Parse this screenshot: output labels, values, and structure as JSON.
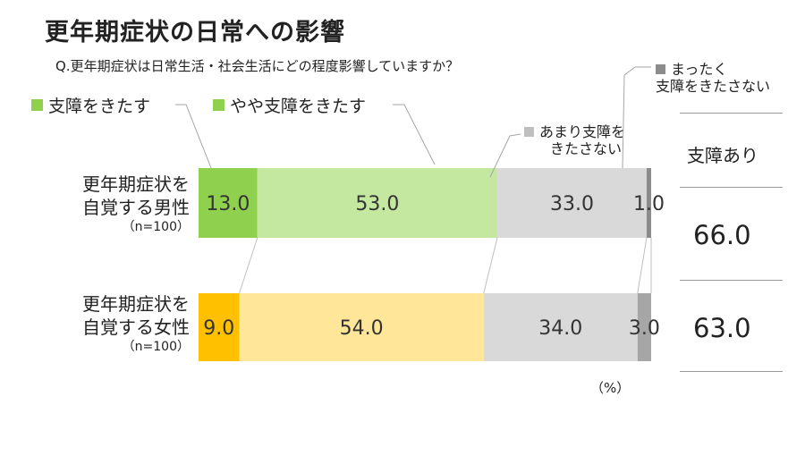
{
  "title": "更年期症状の日常への影響",
  "question": "Q.更年期症状は日常生活・社会生活にどの程度影響していますか？",
  "unit_label": "（%）",
  "summary": {
    "header": "支障あり",
    "values": [
      "66.0",
      "63.0"
    ]
  },
  "legend": {
    "s1": "支障をきたす",
    "s2": "やや支障をきたす",
    "s3_line1": "あまり支障を",
    "s3_line2": "きたさない",
    "s4_line1": "まったく",
    "s4_line2": "支障をきたさない"
  },
  "rows": [
    {
      "line1": "更年期症状を",
      "line2": "自覚する男性",
      "n": "（n=100）"
    },
    {
      "line1": "更年期症状を",
      "line2": "自覚する女性",
      "n": "（n=100）"
    }
  ],
  "colors": {
    "men": [
      "#8fd14f",
      "#c5e8a0",
      "#d9d9d9",
      "#8c8c8c"
    ],
    "women": [
      "#ffc000",
      "#ffe699",
      "#d9d9d9",
      "#a6a6a6"
    ]
  },
  "chart_data": {
    "type": "bar",
    "orientation": "horizontal",
    "stacked": true,
    "categories": [
      "更年期症状を自覚する男性",
      "更年期症状を自覚する女性"
    ],
    "series": [
      {
        "name": "支障をきたす",
        "values": [
          13.0,
          9.0
        ]
      },
      {
        "name": "やや支障をきたす",
        "values": [
          53.0,
          54.0
        ]
      },
      {
        "name": "あまり支障をきたさない",
        "values": [
          33.0,
          34.0
        ]
      },
      {
        "name": "まったく支障をきたさない",
        "values": [
          1.0,
          3.0
        ]
      }
    ],
    "labels": [
      [
        "13.0",
        "53.0",
        "33.0",
        "1.0"
      ],
      [
        "9.0",
        "54.0",
        "34.0",
        "3.0"
      ]
    ],
    "xlim": [
      0,
      100
    ],
    "grid": false,
    "legend_position": "top"
  }
}
